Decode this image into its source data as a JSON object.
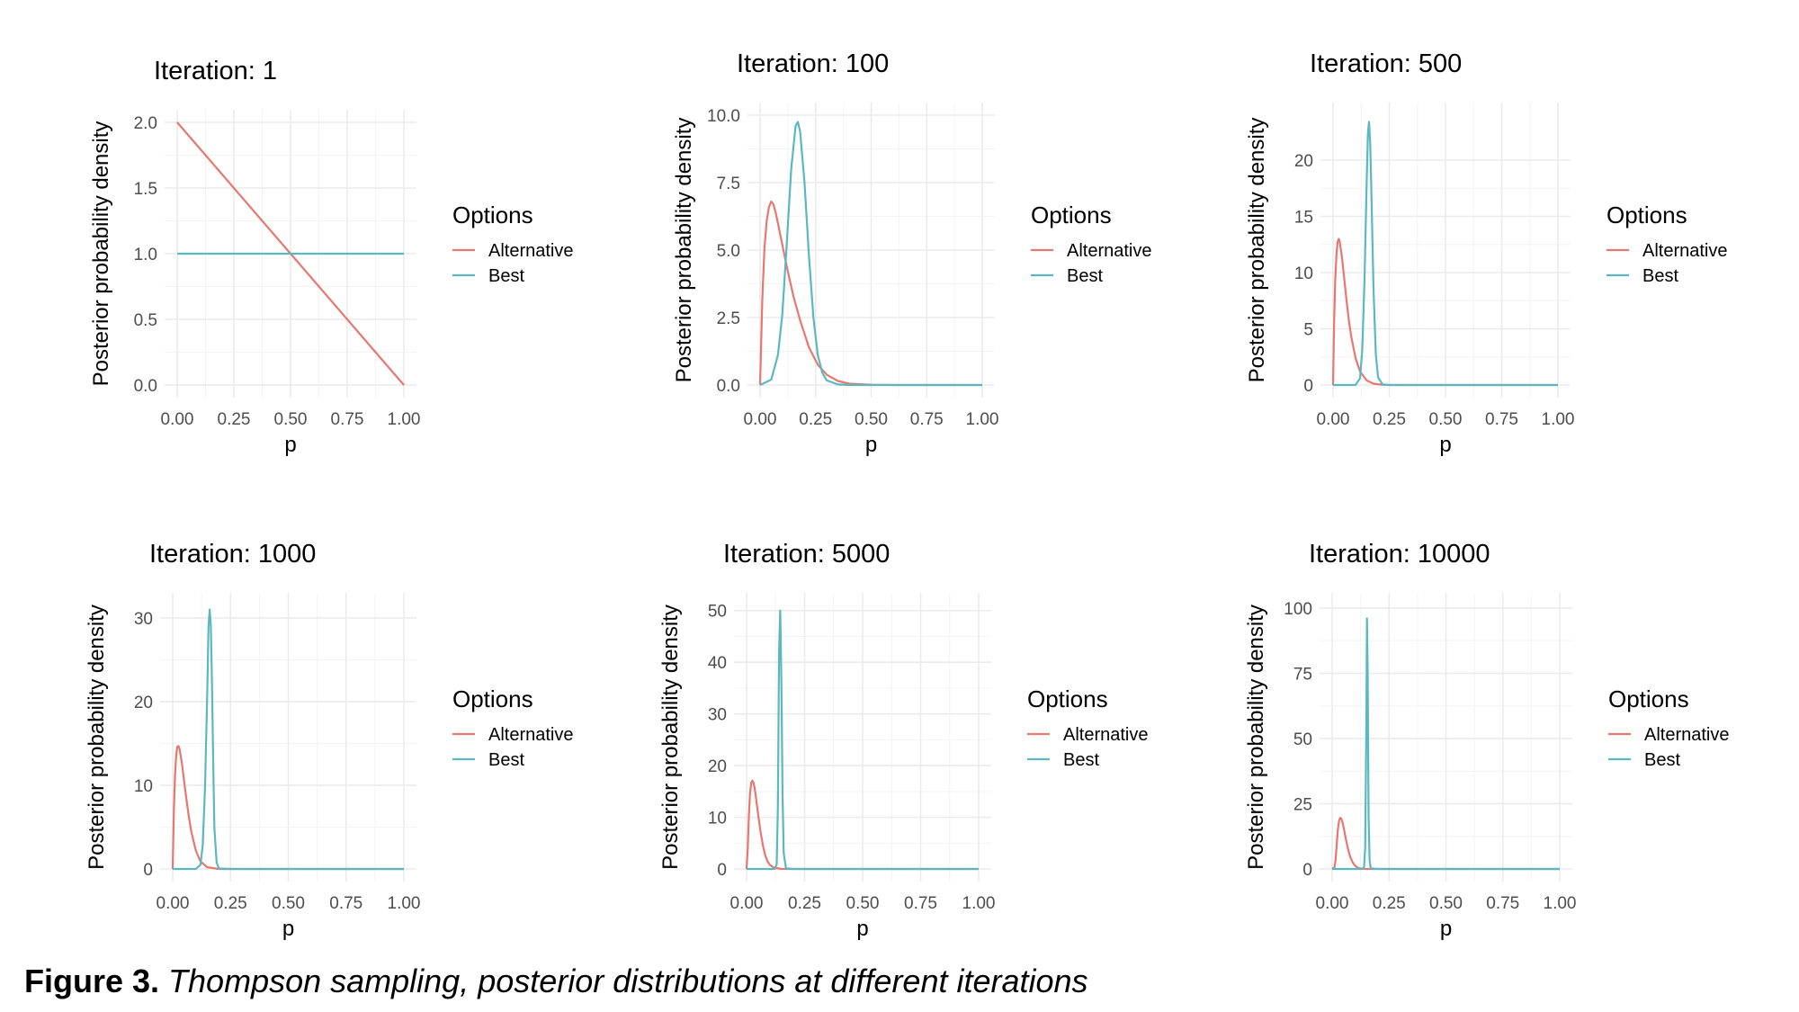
{
  "caption": {
    "label": "Figure 3.",
    "text": "Thompson sampling, posterior distributions at different iterations"
  },
  "colors": {
    "Alternative": "#e8776f",
    "Best": "#5bb8c0"
  },
  "chart_data": [
    {
      "type": "line",
      "title": "Iteration: 1",
      "xlabel": "p",
      "ylabel": "Posterior probability density",
      "xlim": [
        0,
        1
      ],
      "ylim": [
        0,
        2.0
      ],
      "x_ticks": [
        "0.00",
        "0.25",
        "0.50",
        "0.75",
        "1.00"
      ],
      "y_ticks": [
        "0.0",
        "0.5",
        "1.0",
        "1.5",
        "2.0"
      ],
      "legend_title": "Options",
      "legend_position": "right",
      "grid": true,
      "series": [
        {
          "name": "Alternative",
          "x": [
            0,
            1
          ],
          "y": [
            2.0,
            0
          ]
        },
        {
          "name": "Best",
          "x": [
            0,
            1
          ],
          "y": [
            1.0,
            1.0
          ]
        }
      ]
    },
    {
      "type": "line",
      "title": "Iteration: 100",
      "xlabel": "p",
      "ylabel": "Posterior probability density",
      "xlim": [
        0,
        1
      ],
      "ylim": [
        0,
        10.0
      ],
      "x_ticks": [
        "0.00",
        "0.25",
        "0.50",
        "0.75",
        "1.00"
      ],
      "y_ticks": [
        "0.0",
        "2.5",
        "5.0",
        "7.5",
        "10.0"
      ],
      "legend_title": "Options",
      "legend_position": "right",
      "grid": true,
      "series": [
        {
          "name": "Alternative",
          "x": [
            0,
            0.01,
            0.02,
            0.03,
            0.04,
            0.05,
            0.06,
            0.07,
            0.08,
            0.1,
            0.12,
            0.15,
            0.18,
            0.22,
            0.26,
            0.3,
            0.35,
            0.4,
            0.5,
            0.6,
            1.0
          ],
          "y": [
            0,
            3.2,
            5.1,
            6.1,
            6.6,
            6.8,
            6.7,
            6.4,
            6.0,
            5.2,
            4.4,
            3.3,
            2.4,
            1.4,
            0.75,
            0.38,
            0.15,
            0.05,
            0.01,
            0,
            0
          ]
        },
        {
          "name": "Best",
          "x": [
            0,
            0.05,
            0.08,
            0.1,
            0.12,
            0.14,
            0.16,
            0.17,
            0.18,
            0.2,
            0.22,
            0.24,
            0.26,
            0.28,
            0.3,
            0.35,
            0.4,
            0.5,
            1.0
          ],
          "y": [
            0,
            0.2,
            1.1,
            2.6,
            5.2,
            8.0,
            9.6,
            9.75,
            9.4,
            7.5,
            4.8,
            2.5,
            1.1,
            0.45,
            0.17,
            0.02,
            0,
            0,
            0
          ]
        }
      ]
    },
    {
      "type": "line",
      "title": "Iteration: 500",
      "xlabel": "p",
      "ylabel": "Posterior probability density",
      "xlim": [
        0,
        1
      ],
      "ylim": [
        0,
        24
      ],
      "x_ticks": [
        "0.00",
        "0.25",
        "0.50",
        "0.75",
        "1.00"
      ],
      "y_ticks": [
        "0",
        "5",
        "10",
        "15",
        "20"
      ],
      "legend_title": "Options",
      "legend_position": "right",
      "grid": true,
      "series": [
        {
          "name": "Alternative",
          "x": [
            0,
            0.005,
            0.01,
            0.015,
            0.02,
            0.025,
            0.03,
            0.04,
            0.05,
            0.06,
            0.07,
            0.08,
            0.1,
            0.12,
            0.15,
            0.18,
            0.22,
            0.3,
            1.0
          ],
          "y": [
            0,
            6.0,
            9.5,
            11.6,
            12.7,
            13.0,
            12.7,
            11.3,
            9.4,
            7.5,
            5.8,
            4.4,
            2.4,
            1.2,
            0.4,
            0.12,
            0.02,
            0,
            0
          ]
        },
        {
          "name": "Best",
          "x": [
            0,
            0.1,
            0.12,
            0.13,
            0.14,
            0.15,
            0.155,
            0.16,
            0.165,
            0.17,
            0.18,
            0.19,
            0.2,
            0.22,
            0.25,
            1.0
          ],
          "y": [
            0,
            0,
            0.6,
            3.2,
            9.5,
            18.5,
            22.5,
            23.4,
            21.5,
            17.5,
            8.5,
            2.8,
            0.7,
            0.05,
            0,
            0
          ]
        }
      ]
    },
    {
      "type": "line",
      "title": "Iteration: 1000",
      "xlabel": "p",
      "ylabel": "Posterior probability density",
      "xlim": [
        0,
        1
      ],
      "ylim": [
        0,
        31.5
      ],
      "x_ticks": [
        "0.00",
        "0.25",
        "0.50",
        "0.75",
        "1.00"
      ],
      "y_ticks": [
        "0",
        "10",
        "20",
        "30"
      ],
      "legend_title": "Options",
      "legend_position": "right",
      "grid": true,
      "series": [
        {
          "name": "Alternative",
          "x": [
            0,
            0.005,
            0.01,
            0.015,
            0.02,
            0.025,
            0.03,
            0.04,
            0.05,
            0.06,
            0.07,
            0.08,
            0.1,
            0.12,
            0.15,
            0.2,
            1.0
          ],
          "y": [
            0,
            7.0,
            11.2,
            13.6,
            14.6,
            14.7,
            14.3,
            12.6,
            10.4,
            8.2,
            6.2,
            4.5,
            2.2,
            0.9,
            0.2,
            0,
            0
          ]
        },
        {
          "name": "Best",
          "x": [
            0,
            0.1,
            0.12,
            0.13,
            0.14,
            0.15,
            0.155,
            0.16,
            0.165,
            0.17,
            0.175,
            0.18,
            0.19,
            0.2,
            0.25,
            1.0
          ],
          "y": [
            0,
            0,
            0.5,
            2.8,
            10.0,
            22.0,
            29.0,
            31.0,
            29.0,
            22.0,
            13.0,
            5.0,
            0.8,
            0.05,
            0,
            0
          ]
        }
      ]
    },
    {
      "type": "line",
      "title": "Iteration: 5000",
      "xlabel": "p",
      "ylabel": "Posterior probability density",
      "xlim": [
        0,
        1
      ],
      "ylim": [
        0,
        51
      ],
      "x_ticks": [
        "0.00",
        "0.25",
        "0.50",
        "0.75",
        "1.00"
      ],
      "y_ticks": [
        "0",
        "10",
        "20",
        "30",
        "40",
        "50"
      ],
      "legend_title": "Options",
      "legend_position": "right",
      "grid": true,
      "series": [
        {
          "name": "Alternative",
          "x": [
            0,
            0.005,
            0.01,
            0.015,
            0.02,
            0.025,
            0.03,
            0.035,
            0.04,
            0.05,
            0.06,
            0.07,
            0.08,
            0.09,
            0.1,
            0.12,
            0.15,
            0.2,
            1.0
          ],
          "y": [
            0,
            4.0,
            10.5,
            14.8,
            16.7,
            17.1,
            16.7,
            15.6,
            14.0,
            10.5,
            7.2,
            4.6,
            2.7,
            1.5,
            0.8,
            0.2,
            0.02,
            0,
            0
          ]
        },
        {
          "name": "Best",
          "x": [
            0,
            0.12,
            0.13,
            0.135,
            0.14,
            0.145,
            0.15,
            0.155,
            0.16,
            0.17,
            0.2,
            1.0
          ],
          "y": [
            0,
            0,
            0.8,
            12.0,
            42.0,
            50.0,
            36.0,
            14.0,
            3.0,
            0.1,
            0,
            0
          ]
        }
      ]
    },
    {
      "type": "line",
      "title": "Iteration: 10000",
      "xlabel": "p",
      "ylabel": "Posterior probability density",
      "xlim": [
        0,
        1
      ],
      "ylim": [
        0,
        101
      ],
      "x_ticks": [
        "0.00",
        "0.25",
        "0.50",
        "0.75",
        "1.00"
      ],
      "y_ticks": [
        "0",
        "25",
        "50",
        "75",
        "100"
      ],
      "legend_title": "Options",
      "legend_position": "right",
      "grid": true,
      "series": [
        {
          "name": "Alternative",
          "x": [
            0,
            0.01,
            0.015,
            0.02,
            0.025,
            0.03,
            0.035,
            0.04,
            0.045,
            0.05,
            0.06,
            0.07,
            0.08,
            0.09,
            0.1,
            0.11,
            0.12,
            0.14,
            0.16,
            0.2,
            1.0
          ],
          "y": [
            0,
            0.5,
            3.5,
            9.5,
            15.0,
            18.3,
            19.6,
            19.3,
            18.0,
            16.0,
            11.5,
            7.5,
            4.5,
            2.5,
            1.3,
            0.6,
            0.25,
            0.05,
            0,
            0,
            0
          ]
        },
        {
          "name": "Best",
          "x": [
            0,
            0.13,
            0.14,
            0.145,
            0.15,
            0.153,
            0.156,
            0.16,
            0.165,
            0.17,
            0.2,
            1.0
          ],
          "y": [
            0,
            0,
            0.5,
            8.0,
            55.0,
            96.0,
            75.0,
            20.0,
            3.0,
            0.2,
            0,
            0
          ]
        }
      ]
    }
  ]
}
